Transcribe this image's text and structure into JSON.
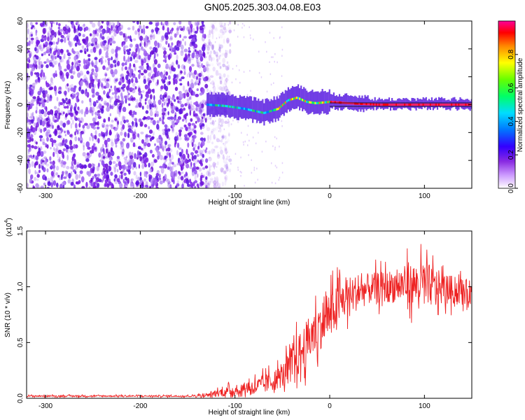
{
  "title": "GN05.2025.303.04.08.E03",
  "colors": {
    "snr_line": "#ee2222",
    "axis": "#000000",
    "colormap": [
      "#ffffff",
      "#8a2be2",
      "#3300ff",
      "#0077ff",
      "#00ddff",
      "#00ff66",
      "#66ff00",
      "#ffff00",
      "#ff8800",
      "#ff0000",
      "#ff0099"
    ]
  },
  "chart_data": [
    {
      "type": "heatmap",
      "name": "spectrogram",
      "xlabel": "Height of straight line (km)",
      "ylabel": "Frequency (Hz)",
      "xlim": [
        -320,
        150
      ],
      "ylim": [
        -60,
        60
      ],
      "xticks": [
        -300,
        -200,
        -100,
        0,
        100
      ],
      "xtick_labels": [
        "-300",
        "-200",
        "-100",
        "0",
        "100"
      ],
      "yticks": [
        -60,
        -40,
        -20,
        0,
        20,
        40,
        60
      ],
      "ytick_labels": [
        "-60",
        "-40",
        "-20",
        "0",
        "20",
        "40",
        "60"
      ],
      "noise_region_x": [
        -320,
        -130
      ],
      "signal_ridge": {
        "x": [
          -130,
          -110,
          -90,
          -70,
          -55,
          -45,
          -35,
          -25,
          -15,
          0,
          20,
          50,
          80,
          100,
          150
        ],
        "y": [
          0,
          -1,
          -3,
          -6,
          -3,
          3,
          5,
          2,
          1,
          2,
          1,
          0,
          0,
          0,
          0
        ]
      },
      "colorbar": {
        "label": "Normalized spectral amplitude",
        "range": [
          0.0,
          1.0
        ],
        "ticks": [
          0.0,
          0.2,
          0.4,
          0.6,
          0.8
        ],
        "tick_labels": [
          "0.0",
          "0.2",
          "0.4",
          "0.6",
          "0.8"
        ]
      }
    },
    {
      "type": "line",
      "name": "snr",
      "xlabel": "Height of straight line (km)",
      "ylabel": "SNR (10 * v/v)",
      "scale_label": "(x10",
      "scale_exponent": "4",
      "scale_close": ")",
      "xlim": [
        -320,
        150
      ],
      "ylim": [
        0.0,
        1.5
      ],
      "xticks": [
        -300,
        -200,
        -100,
        0,
        100
      ],
      "xtick_labels": [
        "-300",
        "-200",
        "-100",
        "0",
        "100"
      ],
      "yticks": [
        0.0,
        0.5,
        1.0,
        1.5
      ],
      "ytick_labels": [
        "0.0",
        "0.5",
        "1.0",
        "1.5"
      ],
      "series": [
        {
          "name": "SNR",
          "envelope_x": [
            -320,
            -200,
            -150,
            -130,
            -110,
            -90,
            -70,
            -50,
            -40,
            -30,
            -20,
            -10,
            0,
            10,
            20,
            40,
            60,
            80,
            100,
            120,
            150
          ],
          "envelope_y": [
            0.02,
            0.02,
            0.02,
            0.03,
            0.06,
            0.09,
            0.12,
            0.2,
            0.3,
            0.42,
            0.55,
            0.65,
            0.75,
            0.85,
            0.92,
            0.98,
            1.0,
            1.02,
            1.02,
            0.98,
            0.95
          ],
          "noise_amplitude": [
            0.01,
            0.01,
            0.01,
            0.03,
            0.06,
            0.08,
            0.12,
            0.15,
            0.25,
            0.28,
            0.3,
            0.3,
            0.3,
            0.28,
            0.25,
            0.2,
            0.2,
            0.25,
            0.3,
            0.2,
            0.15
          ]
        }
      ]
    }
  ]
}
